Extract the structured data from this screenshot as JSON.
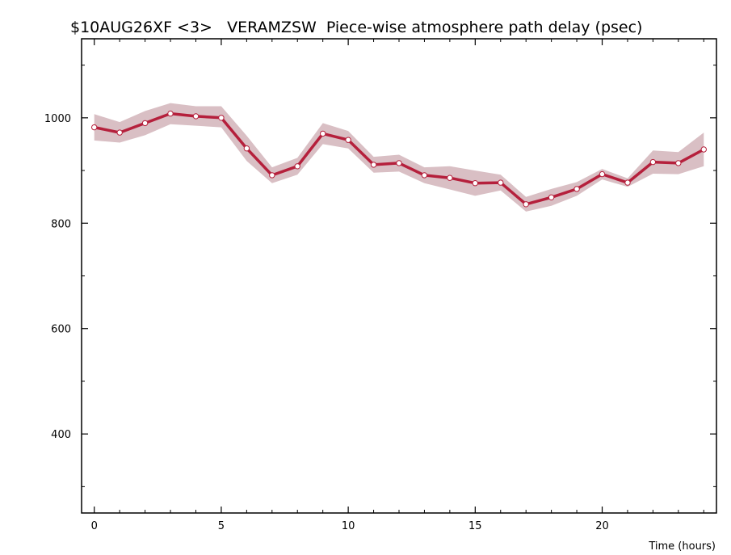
{
  "chart_data": {
    "type": "line",
    "title": "$10AUG26XF <3>   VERAMZSW  Piece-wise atmosphere path delay (psec)",
    "xlabel": "Time (hours)",
    "ylabel": "",
    "xlim": [
      -0.5,
      24.5
    ],
    "ylim": [
      250,
      1150
    ],
    "x_ticks": [
      0,
      5,
      10,
      15,
      20
    ],
    "y_ticks": [
      400,
      600,
      800,
      1000
    ],
    "grid": false,
    "series": [
      {
        "x": [
          0,
          1,
          2,
          3,
          4,
          5,
          6,
          7,
          8,
          9,
          10,
          11,
          12,
          13,
          14,
          15,
          16,
          17,
          18,
          19,
          20,
          21,
          22,
          23,
          24
        ],
        "values": [
          982,
          972,
          990,
          1008,
          1003,
          1000,
          942,
          891,
          908,
          970,
          958,
          911,
          914,
          891,
          886,
          876,
          877,
          836,
          849,
          865,
          893,
          877,
          916,
          914,
          940
        ],
        "upper": [
          1007,
          992,
          1013,
          1028,
          1022,
          1022,
          966,
          906,
          924,
          990,
          975,
          926,
          930,
          906,
          908,
          900,
          892,
          850,
          865,
          878,
          903,
          885,
          938,
          935,
          972
        ],
        "lower": [
          957,
          953,
          967,
          988,
          985,
          982,
          918,
          876,
          892,
          950,
          942,
          896,
          898,
          876,
          864,
          852,
          862,
          822,
          833,
          852,
          883,
          869,
          894,
          893,
          908
        ]
      }
    ],
    "colors": {
      "line": "#b5203c",
      "band": "#d9bfc4",
      "marker_fill": "#ffffff",
      "marker_stroke": "#b5203c",
      "axis": "#000000"
    }
  }
}
